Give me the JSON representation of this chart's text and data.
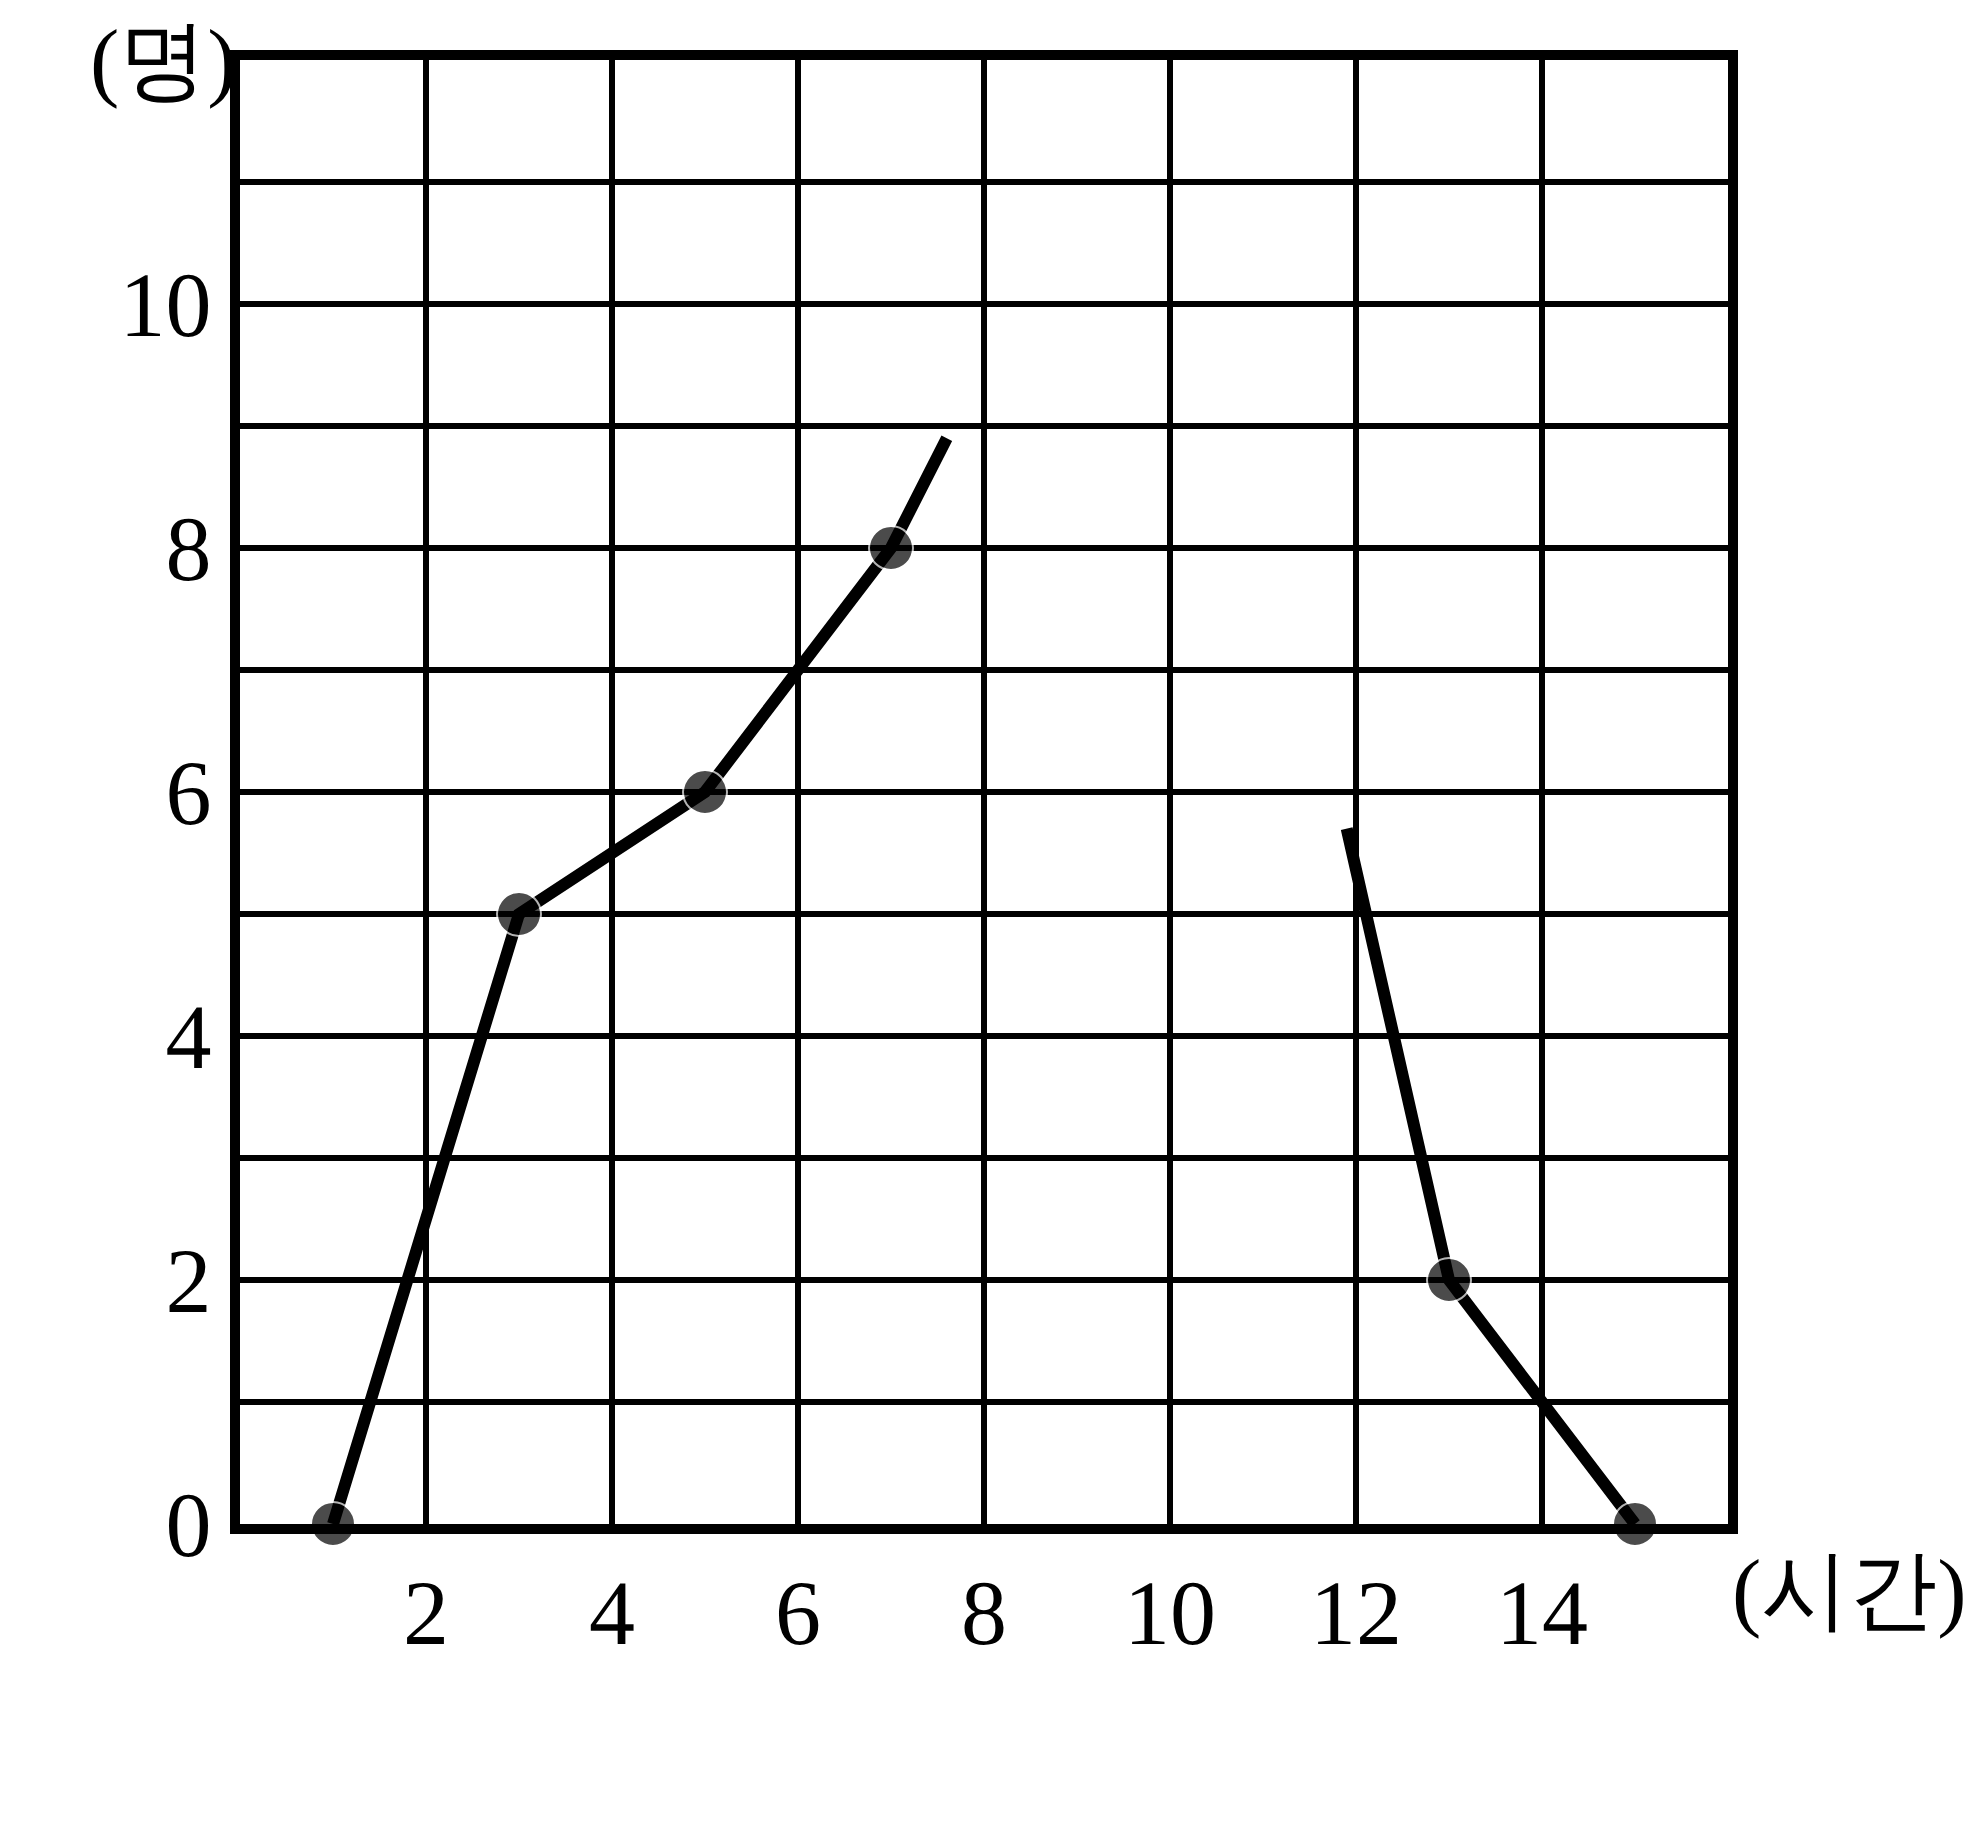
{
  "chart_data": {
    "type": "line",
    "xlabel": "(시간)",
    "ylabel": "(명)",
    "x": [
      1,
      3,
      5,
      7,
      7.6,
      null,
      11.9,
      13,
      15
    ],
    "series": [
      {
        "color": "#000000",
        "values": [
          0,
          5,
          6,
          8,
          8.9,
          null,
          5.7,
          2,
          0
        ]
      }
    ],
    "xlim": [
      0,
      16
    ],
    "ylim": [
      0,
      12
    ],
    "xticks": [
      2,
      4,
      6,
      8,
      10,
      12,
      14,
      {
        "value": 16,
        "label": null
      }
    ],
    "yticks": [
      0,
      {
        "value": 1,
        "label": null
      },
      2,
      {
        "value": 3,
        "label": null
      },
      4,
      {
        "value": 5,
        "label": null
      },
      6,
      {
        "value": 7,
        "label": null
      },
      8,
      {
        "value": 9,
        "label": null
      },
      10,
      {
        "value": 11,
        "label": null
      },
      {
        "value": 12,
        "label": null
      }
    ],
    "grid": true,
    "marker": "circle",
    "line_style": "solid",
    "legend": false
  }
}
